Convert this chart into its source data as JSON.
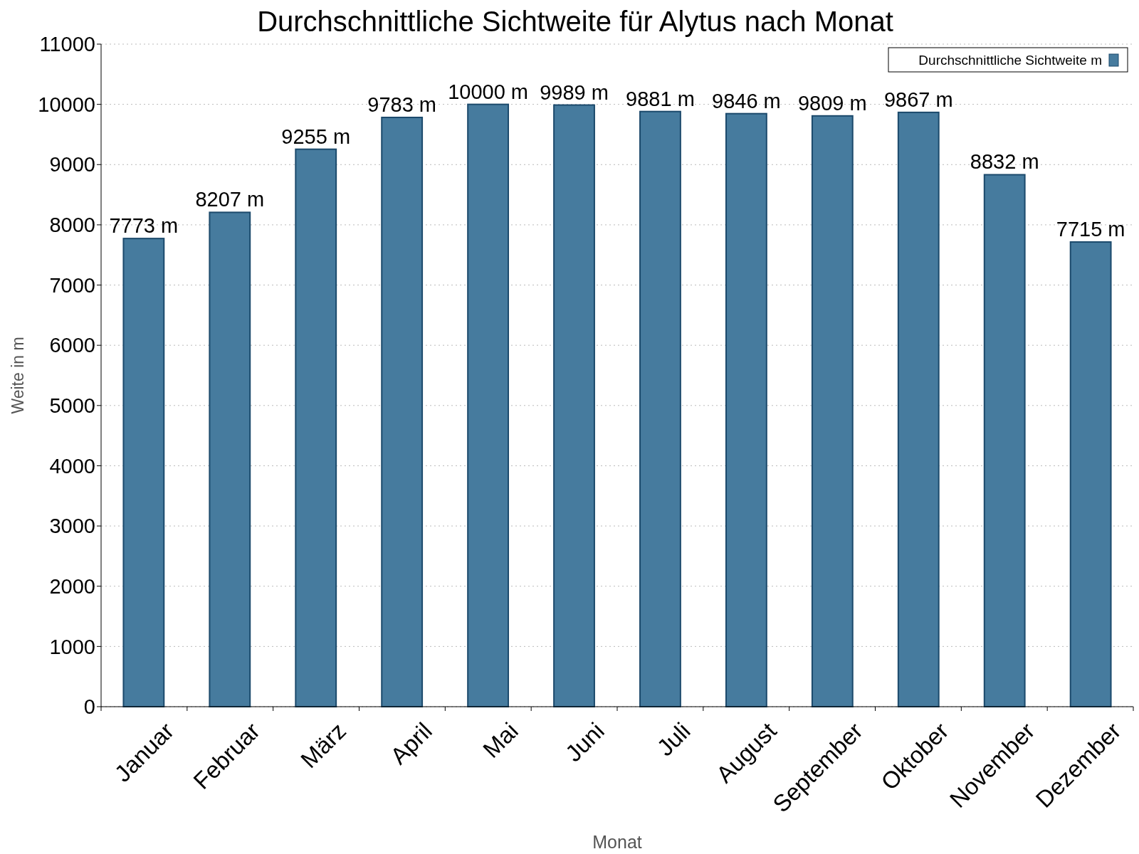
{
  "chart_data": {
    "type": "bar",
    "title": "Durchschnittliche Sichtweite für Alytus nach Monat",
    "xlabel": "Monat",
    "ylabel": "Weite in m",
    "categories": [
      "Januar",
      "Februar",
      "März",
      "April",
      "Mai",
      "Juni",
      "Juli",
      "August",
      "September",
      "Oktober",
      "November",
      "Dezember"
    ],
    "series": [
      {
        "name": "Durchschnittliche Sichtweite m",
        "color": "#467b9e",
        "values": [
          7773,
          8207,
          9255,
          9783,
          10000,
          9989,
          9881,
          9846,
          9809,
          9867,
          8832,
          7715
        ],
        "value_labels": [
          "7773 m",
          "8207 m",
          "9255 m",
          "9783 m",
          "10000 m",
          "9989 m",
          "9881 m",
          "9846 m",
          "9809 m",
          "9867 m",
          "8832 m",
          "7715 m"
        ]
      }
    ],
    "ylim": [
      0,
      11000
    ],
    "yticks": [
      0,
      1000,
      2000,
      3000,
      4000,
      5000,
      6000,
      7000,
      8000,
      9000,
      10000,
      11000
    ],
    "grid": "y",
    "legend": "top right"
  }
}
